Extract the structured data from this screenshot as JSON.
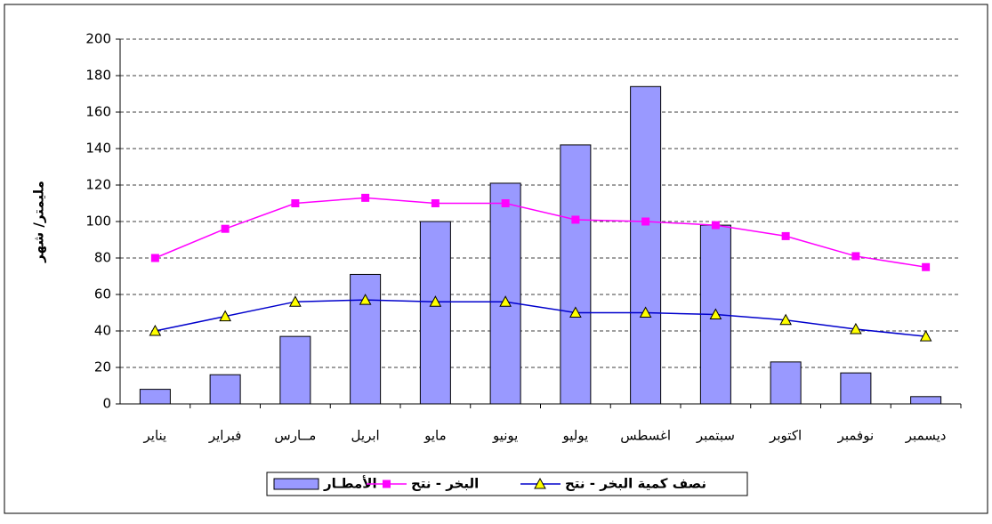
{
  "chart_data": {
    "type": "bar",
    "y_label": "مليمتر/ شهر",
    "categories": [
      "يناير",
      "فبراير",
      "مــارس",
      "ابريل",
      "مايو",
      "يونيو",
      "يوليو",
      "اغسطس",
      "سبتمبر",
      "اكتوبر",
      "نوفمبر",
      "ديسمبر"
    ],
    "series": [
      {
        "name": "الأمطـار",
        "type": "bar",
        "color": "#9999ff",
        "values": [
          8,
          16,
          37,
          71,
          100,
          121,
          142,
          174,
          98,
          23,
          17,
          4
        ]
      },
      {
        "name": "البخر - نتح",
        "type": "line",
        "marker": "square",
        "color": "#ff00ff",
        "values": [
          80,
          96,
          110,
          113,
          110,
          110,
          101,
          100,
          98,
          92,
          81,
          75
        ]
      },
      {
        "name": "نصف كمية البخر - نتح",
        "type": "line",
        "marker": "triangle",
        "color": "#0000cc",
        "values": [
          40,
          48,
          56,
          57,
          56,
          56,
          50,
          50,
          49,
          46,
          41,
          37
        ]
      }
    ],
    "ylim": [
      0,
      200
    ],
    "yticks": [
      0,
      20,
      40,
      60,
      80,
      100,
      120,
      140,
      160,
      180,
      200
    ],
    "grid": true
  }
}
